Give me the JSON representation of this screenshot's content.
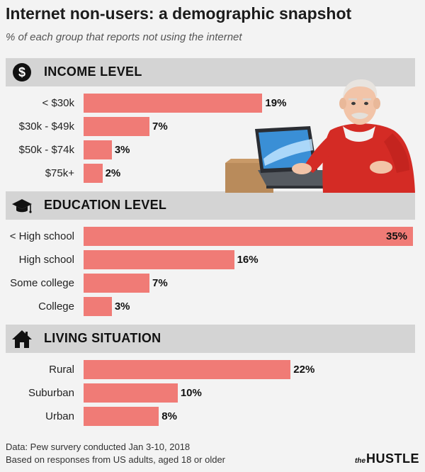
{
  "header": {
    "title": "Internet non-users: a demographic snapshot",
    "subtitle": "% of each group that reports not using the internet"
  },
  "chart_data": {
    "type": "bar",
    "orientation": "horizontal",
    "title": "Internet non-users: a demographic snapshot",
    "subtitle": "% of each group that reports not using the internet",
    "xlim": [
      0,
      35
    ],
    "bar_color": "#f07b76",
    "groups": [
      {
        "label": "INCOME LEVEL",
        "icon": "dollar-icon",
        "categories": [
          "< $30k",
          "$30k - $49k",
          "$50k - $74k",
          "$75k+"
        ],
        "values": [
          19,
          7,
          3,
          2
        ],
        "value_labels": [
          "19%",
          "7%",
          "3%",
          "2%"
        ]
      },
      {
        "label": "EDUCATION LEVEL",
        "icon": "graduation-cap-icon",
        "categories": [
          "< High school",
          "High school",
          "Some college",
          "College"
        ],
        "values": [
          35,
          16,
          7,
          3
        ],
        "value_labels": [
          "35%",
          "16%",
          "7%",
          "3%"
        ]
      },
      {
        "label": "LIVING SITUATION",
        "icon": "house-icon",
        "categories": [
          "Rural",
          "Suburban",
          "Urban"
        ],
        "values": [
          22,
          10,
          8
        ],
        "value_labels": [
          "22%",
          "10%",
          "8%"
        ]
      }
    ]
  },
  "footer": {
    "source": "Data: Pew survery conducted Jan 3-10, 2018",
    "note": "Based on responses from US adults, aged 18 or older"
  },
  "brand": {
    "the": "the",
    "name": "HUSTLE"
  }
}
